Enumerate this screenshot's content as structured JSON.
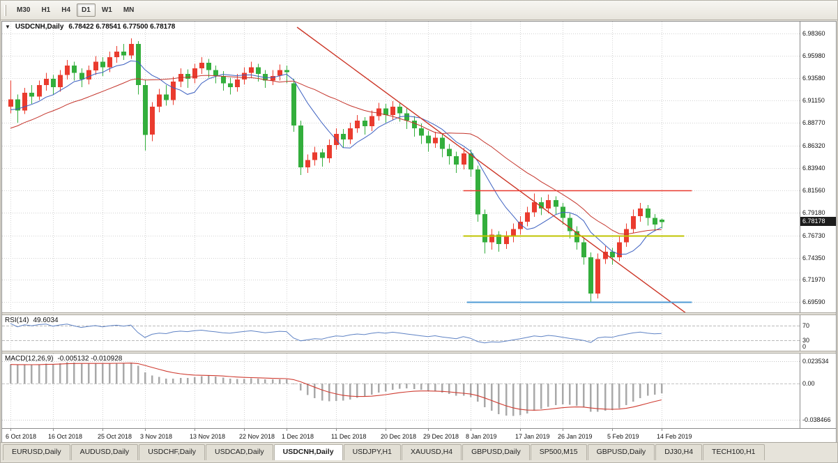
{
  "toolbar": {
    "timeframes": [
      {
        "label": "M30",
        "active": false
      },
      {
        "label": "H1",
        "active": false
      },
      {
        "label": "H4",
        "active": false
      },
      {
        "label": "D1",
        "active": true
      },
      {
        "label": "W1",
        "active": false
      },
      {
        "label": "MN",
        "active": false
      }
    ]
  },
  "chart": {
    "collapse_icon": "▼",
    "symbol_label": "USDCNH,Daily",
    "ohlc_label": "6.78422 6.78541 6.77500 6.78178",
    "current_price": 6.78178,
    "current_price_label": "6.78178",
    "price_scale": {
      "top": 6.996,
      "bottom": 6.685
    },
    "price_axis_labels": [
      "6.98360",
      "6.95980",
      "6.93580",
      "6.91150",
      "6.88770",
      "6.86320",
      "6.83940",
      "6.81560",
      "6.79180",
      "6.76730",
      "6.74350",
      "6.71970",
      "6.69590"
    ],
    "colors": {
      "grid": "#d2d2d2",
      "candle_up": "#ea3b2e",
      "candle_down": "#33ae3c",
      "ma_fast": "#3b5fc0",
      "ma_slow": "#c4342b"
    },
    "ma_fast_period": 8,
    "ma_slow_period": 21,
    "warmup_closes": [
      6.8,
      6.808,
      6.805,
      6.815,
      6.822,
      6.818,
      6.828,
      6.835,
      6.83,
      6.84,
      6.848,
      6.845,
      6.855,
      6.862,
      6.858,
      6.868,
      6.875,
      6.87,
      6.88,
      6.887,
      6.883,
      6.89,
      6.886,
      6.895,
      6.9,
      6.896,
      6.903,
      6.899,
      6.906,
      6.902
    ],
    "candles": [
      [
        6.905,
        6.933,
        6.898,
        6.913
      ],
      [
        6.913,
        6.918,
        6.888,
        6.901
      ],
      [
        6.901,
        6.925,
        6.897,
        6.92
      ],
      [
        6.92,
        6.928,
        6.908,
        6.916
      ],
      [
        6.916,
        6.933,
        6.912,
        6.928
      ],
      [
        6.928,
        6.941,
        6.922,
        6.935
      ],
      [
        6.935,
        6.939,
        6.918,
        6.926
      ],
      [
        6.926,
        6.944,
        6.921,
        6.939
      ],
      [
        6.939,
        6.955,
        6.934,
        6.949
      ],
      [
        6.949,
        6.953,
        6.933,
        6.941
      ],
      [
        6.941,
        6.946,
        6.926,
        6.934
      ],
      [
        6.934,
        6.949,
        6.929,
        6.944
      ],
      [
        6.944,
        6.959,
        6.939,
        6.953
      ],
      [
        6.953,
        6.958,
        6.938,
        6.947
      ],
      [
        6.947,
        6.964,
        6.942,
        6.958
      ],
      [
        6.958,
        6.97,
        6.952,
        6.964
      ],
      [
        6.964,
        6.972,
        6.955,
        6.96
      ],
      [
        6.96,
        6.978,
        6.956,
        6.972
      ],
      [
        6.972,
        6.975,
        6.918,
        6.928
      ],
      [
        6.928,
        6.934,
        6.858,
        6.875
      ],
      [
        6.875,
        6.91,
        6.868,
        6.905
      ],
      [
        6.905,
        6.924,
        6.899,
        6.918
      ],
      [
        6.918,
        6.928,
        6.906,
        6.912
      ],
      [
        6.912,
        6.937,
        6.907,
        6.932
      ],
      [
        6.932,
        6.946,
        6.926,
        6.94
      ],
      [
        6.94,
        6.945,
        6.925,
        6.935
      ],
      [
        6.935,
        6.951,
        6.93,
        6.946
      ],
      [
        6.946,
        6.958,
        6.94,
        6.952
      ],
      [
        6.952,
        6.956,
        6.936,
        6.944
      ],
      [
        6.944,
        6.949,
        6.93,
        6.938
      ],
      [
        6.938,
        6.943,
        6.922,
        6.93
      ],
      [
        6.93,
        6.936,
        6.918,
        6.926
      ],
      [
        6.926,
        6.94,
        6.921,
        6.934
      ],
      [
        6.934,
        6.947,
        6.929,
        6.941
      ],
      [
        6.941,
        6.953,
        6.936,
        6.947
      ],
      [
        6.947,
        6.951,
        6.932,
        6.94
      ],
      [
        6.94,
        6.944,
        6.925,
        6.933
      ],
      [
        6.933,
        6.944,
        6.928,
        6.938
      ],
      [
        6.938,
        6.95,
        6.933,
        6.944
      ],
      [
        6.944,
        6.949,
        6.93,
        6.942
      ],
      [
        6.93,
        6.935,
        6.878,
        6.885
      ],
      [
        6.885,
        6.89,
        6.832,
        6.84
      ],
      [
        6.84,
        6.854,
        6.834,
        6.848
      ],
      [
        6.848,
        6.862,
        6.842,
        6.856
      ],
      [
        6.856,
        6.86,
        6.841,
        6.85
      ],
      [
        6.85,
        6.87,
        6.845,
        6.864
      ],
      [
        6.864,
        6.882,
        6.859,
        6.876
      ],
      [
        6.876,
        6.881,
        6.861,
        6.87
      ],
      [
        6.87,
        6.888,
        6.865,
        6.882
      ],
      [
        6.882,
        6.896,
        6.877,
        6.89
      ],
      [
        6.89,
        6.894,
        6.875,
        6.884
      ],
      [
        6.884,
        6.901,
        6.879,
        6.895
      ],
      [
        6.895,
        6.909,
        6.89,
        6.903
      ],
      [
        6.903,
        6.908,
        6.888,
        6.896
      ],
      [
        6.896,
        6.911,
        6.891,
        6.905
      ],
      [
        6.905,
        6.909,
        6.889,
        6.898
      ],
      [
        6.898,
        6.903,
        6.881,
        6.89
      ],
      [
        6.89,
        6.895,
        6.873,
        6.882
      ],
      [
        6.882,
        6.887,
        6.865,
        6.874
      ],
      [
        6.874,
        6.879,
        6.857,
        6.866
      ],
      [
        6.866,
        6.878,
        6.861,
        6.872
      ],
      [
        6.872,
        6.876,
        6.851,
        6.86
      ],
      [
        6.86,
        6.865,
        6.843,
        6.852
      ],
      [
        6.852,
        6.857,
        6.834,
        6.843
      ],
      [
        6.843,
        6.861,
        6.838,
        6.855
      ],
      [
        6.855,
        6.859,
        6.83,
        6.838
      ],
      [
        6.838,
        6.842,
        6.782,
        6.79
      ],
      [
        6.79,
        6.795,
        6.748,
        6.76
      ],
      [
        6.76,
        6.774,
        6.752,
        6.768
      ],
      [
        6.768,
        6.772,
        6.75,
        6.758
      ],
      [
        6.758,
        6.772,
        6.753,
        6.766
      ],
      [
        6.766,
        6.78,
        6.76,
        6.774
      ],
      [
        6.774,
        6.788,
        6.768,
        6.782
      ],
      [
        6.782,
        6.798,
        6.777,
        6.792
      ],
      [
        6.792,
        6.812,
        6.787,
        6.803
      ],
      [
        6.803,
        6.808,
        6.789,
        6.796
      ],
      [
        6.796,
        6.811,
        6.791,
        6.805
      ],
      [
        6.805,
        6.809,
        6.79,
        6.798
      ],
      [
        6.798,
        6.802,
        6.779,
        6.786
      ],
      [
        6.786,
        6.791,
        6.764,
        6.772
      ],
      [
        6.772,
        6.777,
        6.752,
        6.76
      ],
      [
        6.76,
        6.765,
        6.736,
        6.744
      ],
      [
        6.744,
        6.749,
        6.6967,
        6.705
      ],
      [
        6.705,
        6.748,
        6.7,
        6.742
      ],
      [
        6.742,
        6.756,
        6.737,
        6.75
      ],
      [
        6.75,
        6.754,
        6.736,
        6.744
      ],
      [
        6.744,
        6.766,
        6.74,
        6.76
      ],
      [
        6.76,
        6.78,
        6.755,
        6.774
      ],
      [
        6.774,
        6.795,
        6.77,
        6.788
      ],
      [
        6.788,
        6.802,
        6.782,
        6.796
      ],
      [
        6.796,
        6.8,
        6.778,
        6.786
      ],
      [
        6.786,
        6.79,
        6.772,
        6.779
      ],
      [
        6.78422,
        6.78541,
        6.775,
        6.78178
      ]
    ],
    "trendline": {
      "i1": 40.5,
      "p1": 6.99,
      "i2": 95.5,
      "p2": 6.684,
      "color": "#cc3526"
    },
    "hlines": [
      {
        "name": "resistance-line-red",
        "price": 6.8156,
        "color": "#e8392e",
        "from_i": 64,
        "to_i": 96.3,
        "width": 1.6
      },
      {
        "name": "support-line-yellow",
        "price": 6.7673,
        "color": "#c0c400",
        "from_i": 64,
        "to_i": 95.2,
        "width": 2
      },
      {
        "name": "support-line-blue",
        "price": 6.6959,
        "color": "#4f9bd5",
        "from_i": 64.5,
        "to_i": 96.3,
        "width": 2
      }
    ],
    "x_ticks": [
      {
        "i": 0,
        "label": "6 Oct 2018"
      },
      {
        "i": 6,
        "label": "16 Oct 2018"
      },
      {
        "i": 13,
        "label": "25 Oct 2018"
      },
      {
        "i": 19,
        "label": "3 Nov 2018"
      },
      {
        "i": 26,
        "label": "13 Nov 2018"
      },
      {
        "i": 33,
        "label": "22 Nov 2018"
      },
      {
        "i": 39,
        "label": "1 Dec 2018"
      },
      {
        "i": 46,
        "label": "11 Dec 2018"
      },
      {
        "i": 53,
        "label": "20 Dec 2018"
      },
      {
        "i": 59,
        "label": "29 Dec 2018"
      },
      {
        "i": 65,
        "label": "8 Jan 2019"
      },
      {
        "i": 72,
        "label": "17 Jan 2019"
      },
      {
        "i": 78,
        "label": "26 Jan 2019"
      },
      {
        "i": 85,
        "label": "5 Feb 2019"
      },
      {
        "i": 92,
        "label": "14 Feb 2019"
      }
    ]
  },
  "rsi": {
    "label": "RSI(14)",
    "value_label": "49.6034",
    "period": 14,
    "color": "#5e82c4",
    "levels": [
      70,
      30
    ],
    "axis_labels": [
      "70",
      "30",
      "0"
    ]
  },
  "macd": {
    "label": "MACD(12,26,9)",
    "values_label": "-0.005132 -0.010928",
    "axis_labels": [
      "0.023534",
      "0.00",
      "-0.038466"
    ],
    "axis_values": [
      0.023534,
      0,
      -0.038466
    ],
    "scale": {
      "top": 0.0315,
      "bottom": -0.047
    },
    "hist_color": "#a9a9a9",
    "signal_color": "#cf3b30"
  },
  "tabs": [
    {
      "label": "EURUSD,Daily",
      "active": false
    },
    {
      "label": "AUDUSD,Daily",
      "active": false
    },
    {
      "label": "USDCHF,Daily",
      "active": false
    },
    {
      "label": "USDCAD,Daily",
      "active": false
    },
    {
      "label": "USDCNH,Daily",
      "active": true
    },
    {
      "label": "USDJPY,H1",
      "active": false
    },
    {
      "label": "XAUUSD,H4",
      "active": false
    },
    {
      "label": "GBPUSD,Daily",
      "active": false
    },
    {
      "label": "SP500,M15",
      "active": false
    },
    {
      "label": "GBPUSD,Daily",
      "active": false
    },
    {
      "label": "DJ30,H4",
      "active": false
    },
    {
      "label": "TECH100,H1",
      "active": false
    }
  ]
}
